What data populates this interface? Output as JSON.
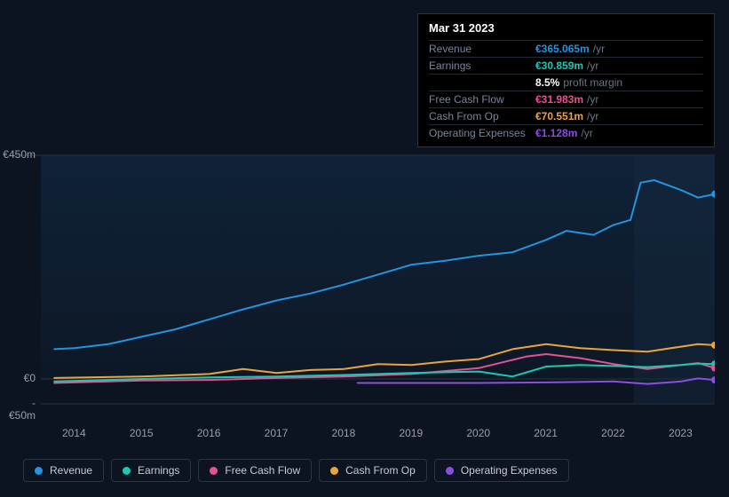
{
  "colors": {
    "background": "#0d1421",
    "revenue": "#2394df",
    "earnings": "#1bc8b3",
    "fcf": "#e85190",
    "cashop": "#eba43b",
    "opex": "#8a4fe0",
    "grid": "#2a3340",
    "axis_line": "#3a4250",
    "axis_text": "#989fab",
    "muted": "#7a8599",
    "suffix": "#6b7585",
    "white": "#ffffff"
  },
  "tooltip": {
    "date": "Mar 31 2023",
    "rows": [
      {
        "label": "Revenue",
        "value": "€365.065m",
        "color_key": "revenue",
        "suffix": "/yr"
      },
      {
        "label": "Earnings",
        "value": "€30.859m",
        "color_key": "earnings",
        "suffix": "/yr"
      },
      {
        "label": "",
        "value": "8.5%",
        "color_key": "white",
        "suffix": "profit margin"
      },
      {
        "label": "Free Cash Flow",
        "value": "€31.983m",
        "color_key": "fcf",
        "suffix": "/yr"
      },
      {
        "label": "Cash From Op",
        "value": "€70.551m",
        "color_key": "cashop",
        "suffix": "/yr"
      },
      {
        "label": "Operating Expenses",
        "value": "€1.128m",
        "color_key": "opex",
        "suffix": "/yr"
      }
    ]
  },
  "chart": {
    "type": "line",
    "ylim": [
      -50,
      450
    ],
    "yticks": [
      {
        "v": 450,
        "label": "€450m"
      },
      {
        "v": 0,
        "label": "€0"
      },
      {
        "v": -50,
        "label": "-€50m"
      }
    ],
    "xlim": [
      2013.5,
      2023.5
    ],
    "xticks": [
      2014,
      2015,
      2016,
      2017,
      2018,
      2019,
      2020,
      2021,
      2022,
      2023
    ],
    "line_width": 2,
    "background_color": "#0d1421",
    "gradient_top": "#0f2238",
    "gradient_bottom": "#0d1826",
    "marker_x": 2023.25,
    "series": {
      "revenue": {
        "color_key": "revenue",
        "points": [
          [
            2013.7,
            60
          ],
          [
            2014,
            62
          ],
          [
            2014.5,
            70
          ],
          [
            2015,
            85
          ],
          [
            2015.5,
            100
          ],
          [
            2016,
            120
          ],
          [
            2016.5,
            140
          ],
          [
            2017,
            158
          ],
          [
            2017.5,
            172
          ],
          [
            2018,
            190
          ],
          [
            2018.5,
            210
          ],
          [
            2019,
            230
          ],
          [
            2019.5,
            238
          ],
          [
            2020,
            248
          ],
          [
            2020.5,
            255
          ],
          [
            2021,
            280
          ],
          [
            2021.3,
            298
          ],
          [
            2021.7,
            290
          ],
          [
            2022,
            310
          ],
          [
            2022.25,
            320
          ],
          [
            2022.4,
            395
          ],
          [
            2022.6,
            400
          ],
          [
            2023,
            380
          ],
          [
            2023.25,
            365
          ],
          [
            2023.5,
            372
          ]
        ]
      },
      "earnings": {
        "color_key": "earnings",
        "points": [
          [
            2013.7,
            -5
          ],
          [
            2014.5,
            -2
          ],
          [
            2015,
            0
          ],
          [
            2016,
            3
          ],
          [
            2017,
            5
          ],
          [
            2018,
            8
          ],
          [
            2019,
            12
          ],
          [
            2020,
            15
          ],
          [
            2020.5,
            5
          ],
          [
            2021,
            25
          ],
          [
            2021.5,
            28
          ],
          [
            2022,
            26
          ],
          [
            2022.5,
            24
          ],
          [
            2023,
            28
          ],
          [
            2023.25,
            31
          ],
          [
            2023.5,
            30
          ]
        ]
      },
      "fcf": {
        "color_key": "fcf",
        "points": [
          [
            2013.7,
            -8
          ],
          [
            2015,
            -3
          ],
          [
            2016,
            -2
          ],
          [
            2017,
            2
          ],
          [
            2018,
            5
          ],
          [
            2019,
            10
          ],
          [
            2020,
            22
          ],
          [
            2020.7,
            45
          ],
          [
            2021,
            50
          ],
          [
            2021.5,
            42
          ],
          [
            2022,
            30
          ],
          [
            2022.5,
            20
          ],
          [
            2023,
            28
          ],
          [
            2023.25,
            32
          ],
          [
            2023.5,
            22
          ]
        ]
      },
      "cashop": {
        "color_key": "cashop",
        "points": [
          [
            2013.7,
            2
          ],
          [
            2015,
            5
          ],
          [
            2016,
            10
          ],
          [
            2016.5,
            20
          ],
          [
            2017,
            12
          ],
          [
            2017.5,
            18
          ],
          [
            2018,
            20
          ],
          [
            2018.5,
            30
          ],
          [
            2019,
            28
          ],
          [
            2019.5,
            35
          ],
          [
            2020,
            40
          ],
          [
            2020.5,
            60
          ],
          [
            2021,
            70
          ],
          [
            2021.5,
            62
          ],
          [
            2022,
            58
          ],
          [
            2022.5,
            55
          ],
          [
            2023,
            65
          ],
          [
            2023.25,
            70
          ],
          [
            2023.5,
            68
          ]
        ]
      },
      "opex": {
        "color_key": "opex",
        "points": [
          [
            2018.2,
            -8
          ],
          [
            2019,
            -8
          ],
          [
            2020,
            -8
          ],
          [
            2021,
            -7
          ],
          [
            2022,
            -5
          ],
          [
            2022.5,
            -10
          ],
          [
            2023,
            -5
          ],
          [
            2023.25,
            1
          ],
          [
            2023.5,
            -2
          ]
        ]
      }
    }
  },
  "legend": [
    {
      "label": "Revenue",
      "color_key": "revenue"
    },
    {
      "label": "Earnings",
      "color_key": "earnings"
    },
    {
      "label": "Free Cash Flow",
      "color_key": "fcf"
    },
    {
      "label": "Cash From Op",
      "color_key": "cashop"
    },
    {
      "label": "Operating Expenses",
      "color_key": "opex"
    }
  ]
}
